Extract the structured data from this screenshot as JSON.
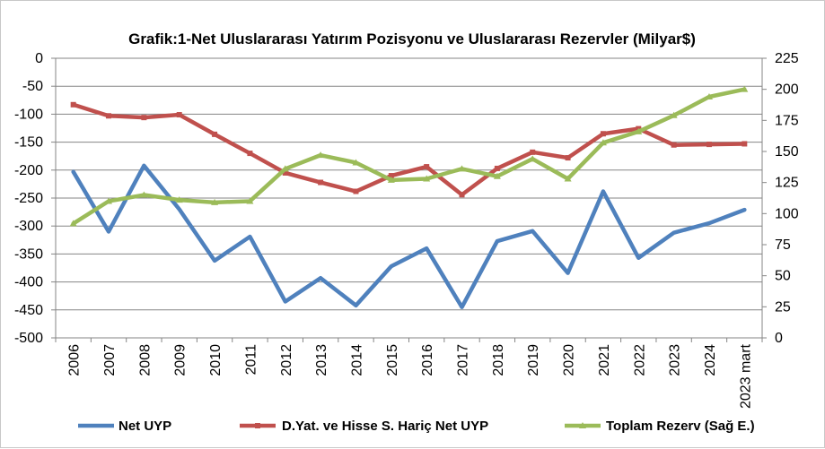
{
  "chart_data": {
    "type": "line",
    "title": "Grafik:1-Net Uluslararası Yatırım Pozisyonu ve Uluslararası Rezervler (Milyar$)",
    "categories": [
      "2006",
      "2007",
      "2008",
      "2009",
      "2010",
      "2011",
      "2012",
      "2013",
      "2014",
      "2015",
      "2016",
      "2017",
      "2018",
      "2019",
      "2020",
      "2021",
      "2022",
      "2023",
      "2024",
      "2023 mart"
    ],
    "y_left": {
      "ylim": [
        -500,
        0
      ],
      "ticks": [
        0,
        -50,
        -100,
        -150,
        -200,
        -250,
        -300,
        -350,
        -400,
        -450,
        -500
      ]
    },
    "y_right": {
      "ylim": [
        0,
        225
      ],
      "ticks": [
        225,
        200,
        175,
        150,
        125,
        100,
        75,
        50,
        25,
        0
      ]
    },
    "grid": true,
    "legend_position": "bottom",
    "series": [
      {
        "name": "Net UYP",
        "axis": "left",
        "color": "#4f81bd",
        "values": [
          -203,
          -310,
          -192,
          -270,
          -362,
          -319,
          -435,
          -393,
          -442,
          -372,
          -340,
          -445,
          -327,
          -309,
          -384,
          -238,
          -357,
          -312,
          -295,
          -271
        ]
      },
      {
        "name": "D.Yat. ve Hisse S. Hariç Net UYP",
        "axis": "left",
        "color": "#c0504d",
        "values": [
          -83,
          -103,
          -106,
          -101,
          -136,
          -170,
          -205,
          -222,
          -238,
          -210,
          -194,
          -244,
          -197,
          -168,
          -178,
          -135,
          -126,
          -155,
          -154,
          -153
        ]
      },
      {
        "name": "Toplam Rezerv (Sağ E.)",
        "axis": "right",
        "color": "#9bbb59",
        "values": [
          92,
          110,
          115,
          111,
          109,
          110,
          136,
          147,
          141,
          127,
          128,
          136,
          130,
          144,
          128,
          157,
          166,
          179,
          194,
          200
        ]
      }
    ]
  }
}
